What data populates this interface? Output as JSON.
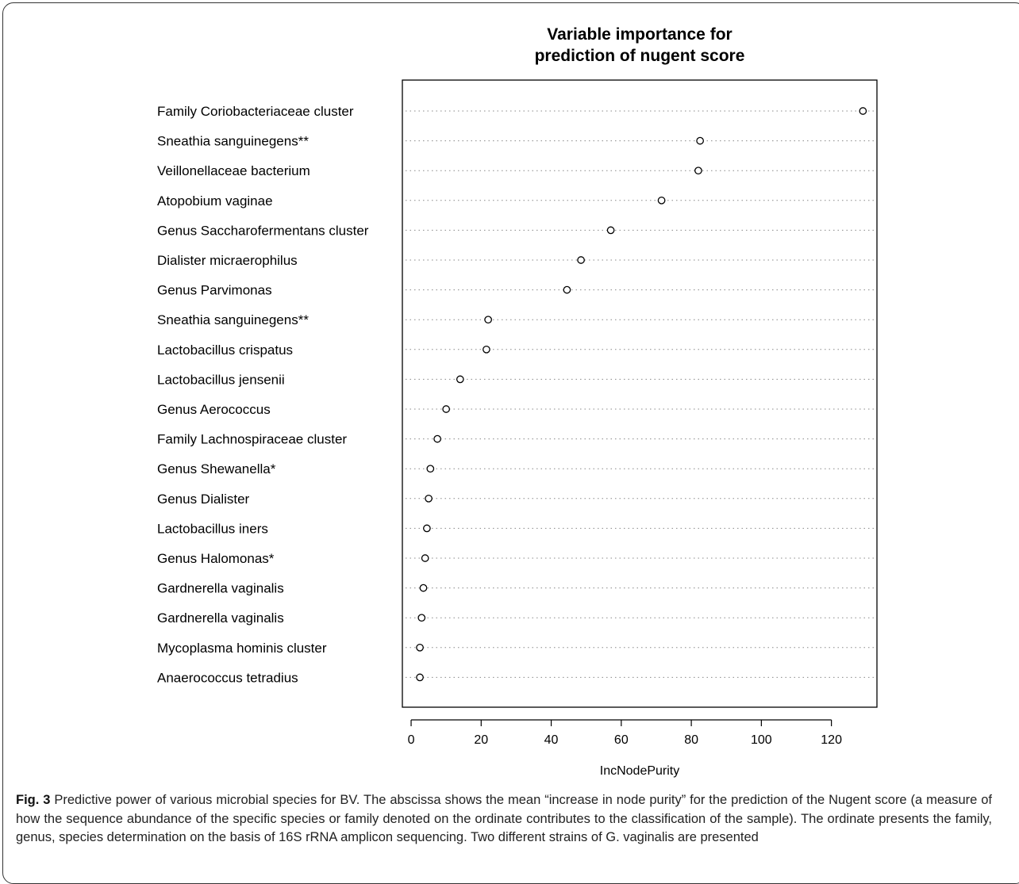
{
  "chart_data": {
    "type": "scatter",
    "title": [
      "Variable importance for",
      "prediction of nugent score"
    ],
    "xlabel": "IncNodePurity",
    "ylabel": "",
    "xlim": [
      -2.5,
      133
    ],
    "xticks": [
      0,
      20,
      40,
      60,
      80,
      100,
      120
    ],
    "grid": "dotted horizontal lines per variable",
    "categories": [
      "Family Coriobacteriaceae cluster",
      "Sneathia sanguinegens**",
      "Veillonellaceae bacterium",
      "Atopobium vaginae",
      "Genus Saccharofermentans cluster",
      "Dialister micraerophilus",
      "Genus Parvimonas",
      "Sneathia sanguinegens**",
      "Lactobacillus crispatus",
      "Lactobacillus jensenii",
      "Genus Aerococcus",
      "Family Lachnospiraceae cluster",
      "Genus Shewanella*",
      "Genus Dialister",
      "Lactobacillus iners",
      "Genus Halomonas*",
      "Gardnerella vaginalis",
      "Gardnerella vaginalis",
      "Mycoplasma hominis cluster",
      "Anaerococcus tetradius"
    ],
    "values": [
      129,
      82.5,
      82,
      71.5,
      57,
      48.5,
      44.5,
      22,
      21.5,
      14,
      10,
      7.5,
      5.5,
      5,
      4.5,
      4,
      3.5,
      3,
      2.5,
      2.5
    ]
  },
  "caption": {
    "label": "Fig. 3",
    "text": "Predictive power of various microbial species for BV. The abscissa shows the mean “increase in node purity” for the prediction of the Nugent score (a measure of how the sequence abundance of the specific species or family denoted on the ordinate contributes to the classification of the sample). The ordinate presents the family, genus, species determination on the basis of 16S rRNA amplicon sequencing. Two different strains of G. vaginalis are presented"
  }
}
